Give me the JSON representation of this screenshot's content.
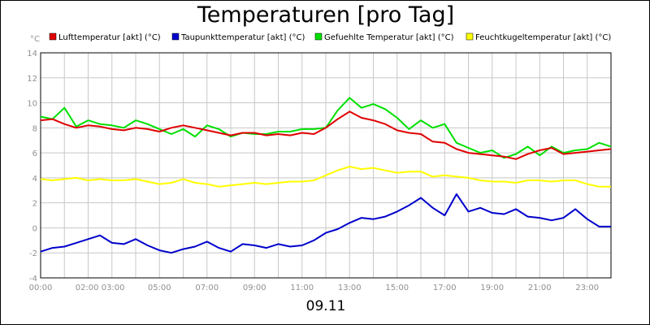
{
  "title": "Temperaturen [pro Tag]",
  "date_label": "09.11",
  "chart_data": {
    "type": "line",
    "title": "Temperaturen [pro Tag]",
    "xlabel": "09.11",
    "ylabel": "°C",
    "xlim": [
      0,
      24
    ],
    "ylim": [
      -4,
      14
    ],
    "grid": true,
    "legend": "top",
    "xticks": [
      "00:00",
      "02:00 03:00",
      "05:00",
      "07:00",
      "09:00",
      "11:00",
      "13:00",
      "15:00",
      "17:00",
      "19:00",
      "21:00",
      "23:00"
    ],
    "xtick_hours": [
      0,
      2.5,
      5,
      7,
      9,
      11,
      13,
      15,
      17,
      19,
      21,
      23
    ],
    "yticks": [
      -4,
      -2,
      0,
      2,
      4,
      6,
      8,
      10,
      12,
      14
    ],
    "x": [
      0,
      0.5,
      1,
      1.5,
      2,
      2.5,
      3,
      3.5,
      4,
      4.5,
      5,
      5.5,
      6,
      6.5,
      7,
      7.5,
      8,
      8.5,
      9,
      9.5,
      10,
      10.5,
      11,
      11.5,
      12,
      12.5,
      13,
      13.5,
      14,
      14.5,
      15,
      15.5,
      16,
      16.5,
      17,
      17.5,
      18,
      18.5,
      19,
      19.5,
      20,
      20.5,
      21,
      21.5,
      22,
      22.5,
      23,
      23.5,
      24
    ],
    "series": [
      {
        "name": "Lufttemperatur [akt] (°C)",
        "color": "#e00000",
        "values": [
          8.6,
          8.7,
          8.3,
          8.0,
          8.2,
          8.1,
          7.9,
          7.8,
          8.0,
          7.9,
          7.7,
          8.0,
          8.2,
          8.0,
          7.8,
          7.6,
          7.4,
          7.6,
          7.6,
          7.4,
          7.5,
          7.4,
          7.6,
          7.5,
          8.0,
          8.7,
          9.3,
          8.8,
          8.6,
          8.3,
          7.8,
          7.6,
          7.5,
          6.9,
          6.8,
          6.3,
          6.0,
          5.9,
          5.8,
          5.7,
          5.5,
          5.9,
          6.2,
          6.4,
          5.9,
          6.0,
          6.1,
          6.2,
          6.3
        ]
      },
      {
        "name": "Taupunkttemperatur [akt] (°C)",
        "color": "#0000cc",
        "values": [
          -1.9,
          -1.6,
          -1.5,
          -1.2,
          -0.9,
          -0.6,
          -1.2,
          -1.3,
          -0.9,
          -1.4,
          -1.8,
          -2.0,
          -1.7,
          -1.5,
          -1.1,
          -1.6,
          -1.9,
          -1.3,
          -1.4,
          -1.6,
          -1.3,
          -1.5,
          -1.4,
          -1.0,
          -0.4,
          -0.1,
          0.4,
          0.8,
          0.7,
          0.9,
          1.3,
          1.8,
          2.4,
          1.6,
          1.0,
          2.7,
          1.3,
          1.6,
          1.2,
          1.1,
          1.5,
          0.9,
          0.8,
          0.6,
          0.8,
          1.5,
          0.7,
          0.1,
          0.1
        ]
      },
      {
        "name": "Gefuehlte Temperatur [akt] (°C)",
        "color": "#00e000",
        "values": [
          8.9,
          8.7,
          9.6,
          8.1,
          8.6,
          8.3,
          8.2,
          8.0,
          8.6,
          8.3,
          7.9,
          7.5,
          7.9,
          7.3,
          8.2,
          7.9,
          7.3,
          7.6,
          7.5,
          7.5,
          7.7,
          7.7,
          7.9,
          7.9,
          8.0,
          9.4,
          10.4,
          9.6,
          9.9,
          9.5,
          8.8,
          7.9,
          8.6,
          8.0,
          8.3,
          6.8,
          6.4,
          6.0,
          6.2,
          5.6,
          5.9,
          6.5,
          5.8,
          6.5,
          6.0,
          6.2,
          6.3,
          6.8,
          6.5
        ]
      },
      {
        "name": "Feuchtkugeltemperatur [akt] (°C)",
        "color": "#ffff00",
        "values": [
          3.9,
          3.8,
          3.9,
          4.0,
          3.8,
          3.9,
          3.8,
          3.8,
          3.9,
          3.7,
          3.5,
          3.6,
          3.9,
          3.6,
          3.5,
          3.3,
          3.4,
          3.5,
          3.6,
          3.5,
          3.6,
          3.7,
          3.7,
          3.8,
          4.2,
          4.6,
          4.9,
          4.7,
          4.8,
          4.6,
          4.4,
          4.5,
          4.5,
          4.1,
          4.2,
          4.1,
          4.0,
          3.8,
          3.7,
          3.7,
          3.6,
          3.8,
          3.8,
          3.7,
          3.8,
          3.8,
          3.5,
          3.3,
          3.3
        ]
      }
    ]
  }
}
